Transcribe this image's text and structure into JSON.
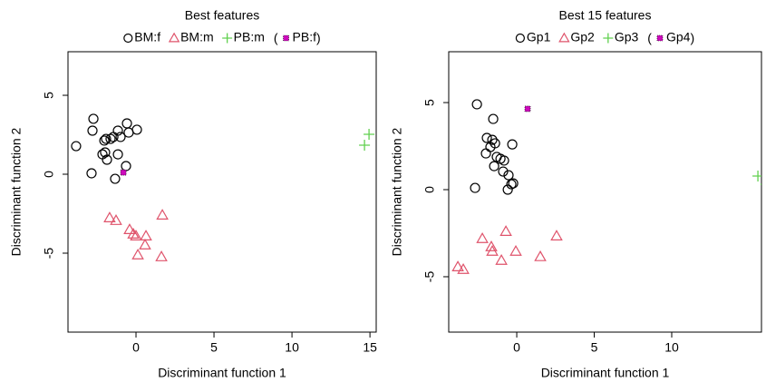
{
  "chart_data": [
    {
      "type": "scatter",
      "title": "Best  features",
      "x_label": "Discriminant function 1",
      "y_label": "Discriminant function 2",
      "xlim": [
        -4.36,
        15.4
      ],
      "ylim": [
        -10,
        7.76
      ],
      "xticks": [
        0,
        5,
        10,
        15
      ],
      "yticks": [
        -5,
        0,
        5
      ],
      "legend_open": "(",
      "legend_close": ")",
      "series": [
        {
          "name": "BM:f",
          "color": "#000000",
          "marker": "circle",
          "x": [
            -3.84,
            -2.73,
            -2.79,
            -2.03,
            -1.92,
            -1.98,
            -2.15,
            -1.86,
            -1.63,
            -1.45,
            -0.99,
            -1.16,
            -0.58,
            -0.47,
            0.06,
            -1.16,
            -0.64,
            -2.85,
            -1.34
          ],
          "values": [
            1.78,
            3.51,
            2.76,
            2.13,
            2.24,
            1.38,
            1.26,
            0.92,
            2.24,
            2.36,
            2.36,
            2.76,
            3.22,
            2.64,
            2.82,
            1.26,
            0.52,
            0.06,
            -0.29
          ]
        },
        {
          "name": "BM:m",
          "color": "#DF536B",
          "marker": "triangle",
          "x": [
            -1.69,
            -1.28,
            -0.41,
            -0.17,
            0,
            0.64,
            0.58,
            0.12,
            1.69,
            1.63
          ],
          "values": [
            -2.76,
            -2.93,
            -3.51,
            -3.79,
            -3.91,
            -3.91,
            -4.48,
            -5.11,
            -2.59,
            -5.23
          ]
        },
        {
          "name": "PB:m",
          "color": "#61D04F",
          "marker": "plus",
          "x": [
            14.65,
            14.94
          ],
          "values": [
            1.84,
            2.53
          ]
        },
        {
          "name": "PB:f",
          "color": "#CD0BBC",
          "marker": "square",
          "x": [
            -0.81
          ],
          "values": [
            0.11
          ]
        }
      ]
    },
    {
      "type": "scatter",
      "title": "Best 15 features",
      "x_label": "Discriminant function 1",
      "y_label": "Discriminant function 2",
      "xlim": [
        -4.39,
        15.79
      ],
      "ylim": [
        -8.18,
        7.92
      ],
      "xticks": [
        0,
        5,
        10
      ],
      "yticks": [
        -5,
        0,
        5
      ],
      "legend_open": "(",
      "legend_close": ")",
      "series": [
        {
          "name": "Gp1",
          "color": "#000000",
          "marker": "circle",
          "x": [
            -2.57,
            -1.52,
            -1.93,
            -1.58,
            -1.4,
            -1.99,
            -1.7,
            -1.46,
            -1.29,
            -1.05,
            -0.82,
            -0.88,
            -0.53,
            -2.69,
            -0.29,
            -0.35,
            -0.58,
            -0.23
          ],
          "values": [
            4.9,
            4.06,
            2.97,
            2.86,
            2.66,
            2.08,
            2.45,
            1.35,
            1.88,
            1.77,
            1.67,
            1.04,
            0.83,
            0.1,
            2.6,
            0.31,
            0,
            0.36
          ]
        },
        {
          "name": "Gp2",
          "color": "#DF536B",
          "marker": "triangle",
          "x": [
            -3.8,
            -3.45,
            -2.22,
            -1.64,
            -1.58,
            -0.99,
            -0.7,
            -0.06,
            1.52,
            2.57
          ],
          "values": [
            -4.43,
            -4.58,
            -2.81,
            -3.28,
            -3.54,
            -4.06,
            -2.4,
            -3.54,
            -3.85,
            -2.66
          ]
        },
        {
          "name": "Gp3",
          "color": "#61D04F",
          "marker": "plus",
          "x": [
            15.56,
            16.08
          ],
          "values": [
            0.78,
            0.31
          ]
        },
        {
          "name": "Gp4",
          "color": "#CD0BBC",
          "marker": "square",
          "x": [
            0.7
          ],
          "values": [
            4.64
          ]
        }
      ]
    }
  ]
}
